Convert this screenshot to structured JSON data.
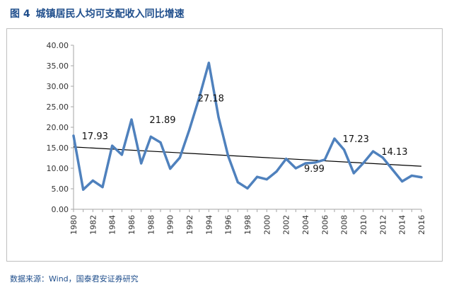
{
  "figure": {
    "number": "图 4",
    "title": "城镇居民人均可支配收入同比增速",
    "source": "数据来源：Wind，国泰君安证券研究"
  },
  "chart_data": {
    "type": "line",
    "title": "城镇居民人均可支配收入同比增速",
    "xlabel": "",
    "ylabel": "",
    "x": [
      1980,
      1981,
      1982,
      1983,
      1984,
      1985,
      1986,
      1987,
      1988,
      1989,
      1990,
      1991,
      1992,
      1993,
      1994,
      1995,
      1996,
      1997,
      1998,
      1999,
      2000,
      2001,
      2002,
      2003,
      2004,
      2005,
      2006,
      2007,
      2008,
      2009,
      2010,
      2011,
      2012,
      2013,
      2014,
      2015,
      2016
    ],
    "x_tick_labels": [
      "1980",
      "1982",
      "1984",
      "1986",
      "1988",
      "1990",
      "1992",
      "1994",
      "1996",
      "1998",
      "2000",
      "2002",
      "2004",
      "2006",
      "2008",
      "2010",
      "2012",
      "2014",
      "2016"
    ],
    "ylim": [
      0,
      40
    ],
    "y_tick_labels": [
      "0.00",
      "5.00",
      "10.00",
      "15.00",
      "20.00",
      "25.00",
      "30.00",
      "35.00",
      "40.00"
    ],
    "grid": false,
    "series": [
      {
        "values": [
          17.93,
          4.8,
          7.0,
          5.4,
          15.5,
          13.3,
          21.89,
          11.2,
          17.7,
          16.3,
          9.9,
          12.6,
          19.5,
          27.18,
          35.7,
          22.5,
          13.0,
          6.6,
          5.1,
          7.9,
          7.3,
          9.2,
          12.3,
          10.0,
          11.2,
          11.4,
          12.1,
          17.23,
          14.5,
          8.8,
          11.3,
          14.13,
          12.6,
          9.7,
          6.8,
          8.2,
          7.8
        ],
        "color": "#4f81bd"
      }
    ],
    "trendline": {
      "x": [
        1980,
        2016
      ],
      "y": [
        15.2,
        10.5
      ],
      "color": "#000000"
    },
    "data_labels": [
      {
        "x": 1981,
        "y": 17.93,
        "text": "17.93"
      },
      {
        "x": 1988,
        "y": 21.89,
        "text": "21.89"
      },
      {
        "x": 1993,
        "y": 27.18,
        "text": "27.18"
      },
      {
        "x": 2004,
        "y": 9.99,
        "text": "9.99"
      },
      {
        "x": 2008,
        "y": 17.23,
        "text": "17.23"
      },
      {
        "x": 2012,
        "y": 14.13,
        "text": "14.13"
      }
    ],
    "legend": "none"
  }
}
